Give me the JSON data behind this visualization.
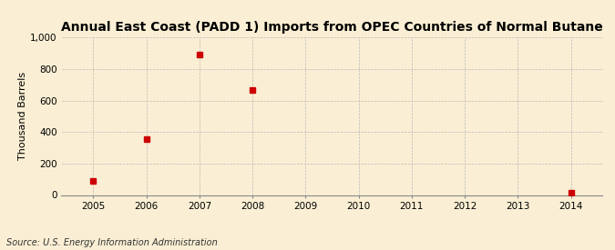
{
  "title": "Annual East Coast (PADD 1) Imports from OPEC Countries of Normal Butane",
  "ylabel": "Thousand Barrels",
  "source": "Source: U.S. Energy Information Administration",
  "background_color": "#faefd4",
  "x_values": [
    2005,
    2006,
    2007,
    2008,
    2014
  ],
  "y_values": [
    88,
    355,
    893,
    669,
    14
  ],
  "xlim": [
    2004.4,
    2014.6
  ],
  "ylim": [
    0,
    1000
  ],
  "yticks": [
    0,
    200,
    400,
    600,
    800,
    1000
  ],
  "ytick_labels": [
    "0",
    "200",
    "400",
    "600",
    "800",
    "1,000"
  ],
  "xticks": [
    2005,
    2006,
    2007,
    2008,
    2009,
    2010,
    2011,
    2012,
    2013,
    2014
  ],
  "marker_color": "#cc0000",
  "marker_size": 4,
  "grid_color": "#bbbbbb",
  "title_fontsize": 10,
  "label_fontsize": 8,
  "tick_fontsize": 7.5,
  "source_fontsize": 7
}
